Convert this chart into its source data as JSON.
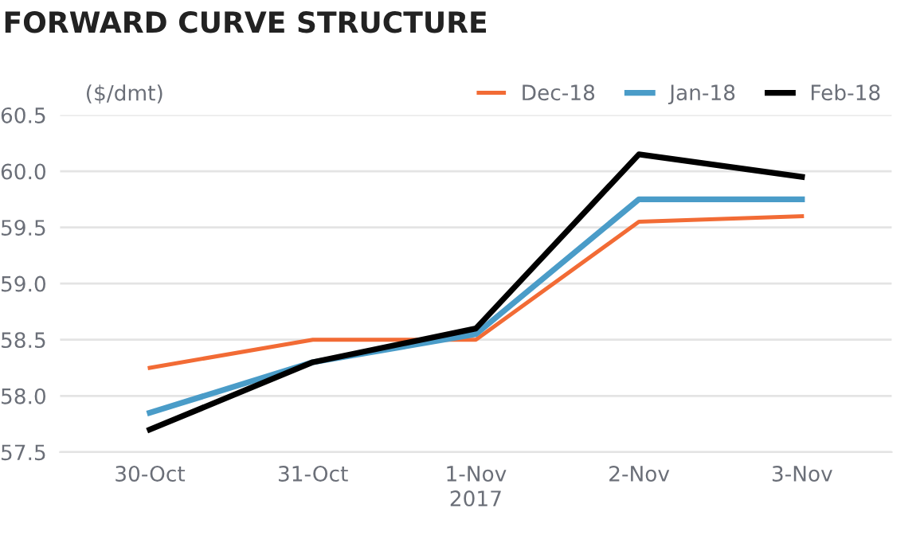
{
  "chart_data": {
    "type": "line",
    "title": "FORWARD CURVE STRUCTURE",
    "ylabel": "($/dmt)",
    "xlabel": "2017",
    "categories": [
      "30-Oct",
      "31-Oct",
      "1-Nov",
      "2-Nov",
      "3-Nov"
    ],
    "series": [
      {
        "name": "Dec-18",
        "color": "#f26b35",
        "values": [
          58.25,
          58.5,
          58.5,
          59.55,
          59.6
        ]
      },
      {
        "name": "Jan-18",
        "color": "#4a9cc8",
        "values": [
          57.85,
          58.3,
          58.55,
          59.75,
          59.75
        ]
      },
      {
        "name": "Feb-18",
        "color": "#000000",
        "values": [
          57.7,
          58.3,
          58.6,
          60.15,
          59.95
        ]
      }
    ],
    "ylim": [
      57.5,
      60.5
    ],
    "yticks": [
      {
        "value": 57.5,
        "label": "57.5"
      },
      {
        "value": 58,
        "label": "58.0"
      },
      {
        "value": 58.5,
        "label": "58.5"
      },
      {
        "value": 59,
        "label": "59.0"
      },
      {
        "value": 59.5,
        "label": "59.5"
      },
      {
        "value": 60,
        "label": "60.0"
      },
      {
        "value": 60.5,
        "label": "60.5"
      }
    ],
    "grid": "y",
    "legend": "top right",
    "marker": "none",
    "line_style": "solid"
  }
}
